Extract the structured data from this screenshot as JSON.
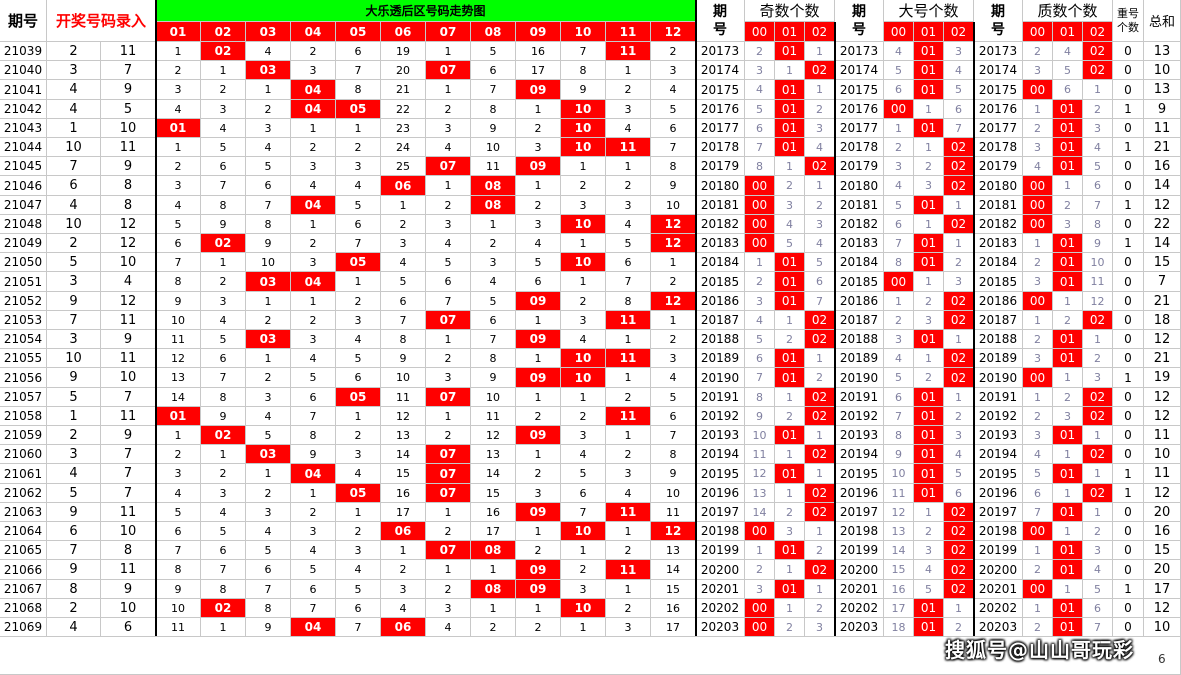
{
  "headers": {
    "period": "期号",
    "entry": "开奖号码录入",
    "trend_title": "大乐透后区号码走势图",
    "trend_cols": [
      "01",
      "02",
      "03",
      "04",
      "05",
      "06",
      "07",
      "08",
      "09",
      "10",
      "11",
      "12"
    ],
    "odd_count": "奇数个数",
    "big_count": "大号个数",
    "prime_count": "质数个数",
    "sub_cols": [
      "00",
      "01",
      "02"
    ],
    "repeat_line1": "重号",
    "repeat_line2": "个数",
    "sum": "总和",
    "period_short_1": "期",
    "period_short_2": "号"
  },
  "rows": [
    {
      "p": "21039",
      "a": 2,
      "b": 11,
      "trend": [
        "1",
        "02",
        "4",
        "2",
        "6",
        "19",
        "1",
        "5",
        "16",
        "7",
        "11",
        "2"
      ],
      "p2": "20173",
      "odd": [
        "2",
        "01",
        "1"
      ],
      "big": [
        "4",
        "01",
        "3"
      ],
      "prime": [
        "2",
        "4",
        "02"
      ],
      "rep": "0",
      "sum": "13"
    },
    {
      "p": "21040",
      "a": 3,
      "b": 7,
      "trend": [
        "2",
        "1",
        "03",
        "3",
        "7",
        "20",
        "07",
        "6",
        "17",
        "8",
        "1",
        "3"
      ],
      "p2": "20174",
      "odd": [
        "3",
        "1",
        "02"
      ],
      "big": [
        "5",
        "01",
        "4"
      ],
      "prime": [
        "3",
        "5",
        "02"
      ],
      "rep": "0",
      "sum": "10"
    },
    {
      "p": "21041",
      "a": 4,
      "b": 9,
      "trend": [
        "3",
        "2",
        "1",
        "04",
        "8",
        "21",
        "1",
        "7",
        "09",
        "9",
        "2",
        "4"
      ],
      "p2": "20175",
      "odd": [
        "4",
        "01",
        "1"
      ],
      "big": [
        "6",
        "01",
        "5"
      ],
      "prime": [
        "00",
        "6",
        "1"
      ],
      "rep": "0",
      "sum": "13"
    },
    {
      "p": "21042",
      "a": 4,
      "b": 5,
      "trend": [
        "4",
        "3",
        "2",
        "04",
        "05",
        "22",
        "2",
        "8",
        "1",
        "10",
        "3",
        "5"
      ],
      "p2": "20176",
      "odd": [
        "5",
        "01",
        "2"
      ],
      "big": [
        "00",
        "1",
        "6"
      ],
      "prime": [
        "1",
        "01",
        "2"
      ],
      "rep": "1",
      "sum": "9"
    },
    {
      "p": "21043",
      "a": 1,
      "b": 10,
      "trend": [
        "01",
        "4",
        "3",
        "1",
        "1",
        "23",
        "3",
        "9",
        "2",
        "10",
        "4",
        "6"
      ],
      "p2": "20177",
      "odd": [
        "6",
        "01",
        "3"
      ],
      "big": [
        "1",
        "01",
        "7"
      ],
      "prime": [
        "2",
        "01",
        "3"
      ],
      "rep": "0",
      "sum": "11"
    },
    {
      "p": "21044",
      "a": 10,
      "b": 11,
      "trend": [
        "1",
        "5",
        "4",
        "2",
        "2",
        "24",
        "4",
        "10",
        "3",
        "10",
        "11",
        "7"
      ],
      "p2": "20178",
      "odd": [
        "7",
        "01",
        "4"
      ],
      "big": [
        "2",
        "1",
        "02"
      ],
      "prime": [
        "3",
        "01",
        "4"
      ],
      "rep": "1",
      "sum": "21"
    },
    {
      "p": "21045",
      "a": 7,
      "b": 9,
      "trend": [
        "2",
        "6",
        "5",
        "3",
        "3",
        "25",
        "07",
        "11",
        "09",
        "1",
        "1",
        "8"
      ],
      "p2": "20179",
      "odd": [
        "8",
        "1",
        "02"
      ],
      "big": [
        "3",
        "2",
        "02"
      ],
      "prime": [
        "4",
        "01",
        "5"
      ],
      "rep": "0",
      "sum": "16"
    },
    {
      "p": "21046",
      "a": 6,
      "b": 8,
      "trend": [
        "3",
        "7",
        "6",
        "4",
        "4",
        "06",
        "1",
        "08",
        "1",
        "2",
        "2",
        "9"
      ],
      "p2": "20180",
      "odd": [
        "00",
        "2",
        "1"
      ],
      "big": [
        "4",
        "3",
        "02"
      ],
      "prime": [
        "00",
        "1",
        "6"
      ],
      "rep": "0",
      "sum": "14"
    },
    {
      "p": "21047",
      "a": 4,
      "b": 8,
      "trend": [
        "4",
        "8",
        "7",
        "04",
        "5",
        "1",
        "2",
        "08",
        "2",
        "3",
        "3",
        "10"
      ],
      "p2": "20181",
      "odd": [
        "00",
        "3",
        "2"
      ],
      "big": [
        "5",
        "01",
        "1"
      ],
      "prime": [
        "00",
        "2",
        "7"
      ],
      "rep": "1",
      "sum": "12"
    },
    {
      "p": "21048",
      "a": 10,
      "b": 12,
      "trend": [
        "5",
        "9",
        "8",
        "1",
        "6",
        "2",
        "3",
        "1",
        "3",
        "10",
        "4",
        "12"
      ],
      "p2": "20182",
      "odd": [
        "00",
        "4",
        "3"
      ],
      "big": [
        "6",
        "1",
        "02"
      ],
      "prime": [
        "00",
        "3",
        "8"
      ],
      "rep": "0",
      "sum": "22"
    },
    {
      "p": "21049",
      "a": 2,
      "b": 12,
      "trend": [
        "6",
        "02",
        "9",
        "2",
        "7",
        "3",
        "4",
        "2",
        "4",
        "1",
        "5",
        "12"
      ],
      "p2": "20183",
      "odd": [
        "00",
        "5",
        "4"
      ],
      "big": [
        "7",
        "01",
        "1"
      ],
      "prime": [
        "1",
        "01",
        "9"
      ],
      "rep": "1",
      "sum": "14"
    },
    {
      "p": "21050",
      "a": 5,
      "b": 10,
      "trend": [
        "7",
        "1",
        "10",
        "3",
        "05",
        "4",
        "5",
        "3",
        "5",
        "10",
        "6",
        "1"
      ],
      "p2": "20184",
      "odd": [
        "1",
        "01",
        "5"
      ],
      "big": [
        "8",
        "01",
        "2"
      ],
      "prime": [
        "2",
        "01",
        "10"
      ],
      "rep": "0",
      "sum": "15"
    },
    {
      "p": "21051",
      "a": 3,
      "b": 4,
      "trend": [
        "8",
        "2",
        "03",
        "04",
        "1",
        "5",
        "6",
        "4",
        "6",
        "1",
        "7",
        "2"
      ],
      "p2": "20185",
      "odd": [
        "2",
        "01",
        "6"
      ],
      "big": [
        "00",
        "1",
        "3"
      ],
      "prime": [
        "3",
        "01",
        "11"
      ],
      "rep": "0",
      "sum": "7"
    },
    {
      "p": "21052",
      "a": 9,
      "b": 12,
      "trend": [
        "9",
        "3",
        "1",
        "1",
        "2",
        "6",
        "7",
        "5",
        "09",
        "2",
        "8",
        "12"
      ],
      "p2": "20186",
      "odd": [
        "3",
        "01",
        "7"
      ],
      "big": [
        "1",
        "2",
        "02"
      ],
      "prime": [
        "00",
        "1",
        "12"
      ],
      "rep": "0",
      "sum": "21"
    },
    {
      "p": "21053",
      "a": 7,
      "b": 11,
      "trend": [
        "10",
        "4",
        "2",
        "2",
        "3",
        "7",
        "07",
        "6",
        "1",
        "3",
        "11",
        "1"
      ],
      "p2": "20187",
      "odd": [
        "4",
        "1",
        "02"
      ],
      "big": [
        "2",
        "3",
        "02"
      ],
      "prime": [
        "1",
        "2",
        "02"
      ],
      "rep": "0",
      "sum": "18"
    },
    {
      "p": "21054",
      "a": 3,
      "b": 9,
      "trend": [
        "11",
        "5",
        "03",
        "3",
        "4",
        "8",
        "1",
        "7",
        "09",
        "4",
        "1",
        "2"
      ],
      "p2": "20188",
      "odd": [
        "5",
        "2",
        "02"
      ],
      "big": [
        "3",
        "01",
        "1"
      ],
      "prime": [
        "2",
        "01",
        "1"
      ],
      "rep": "0",
      "sum": "12"
    },
    {
      "p": "21055",
      "a": 10,
      "b": 11,
      "trend": [
        "12",
        "6",
        "1",
        "4",
        "5",
        "9",
        "2",
        "8",
        "1",
        "10",
        "11",
        "3"
      ],
      "p2": "20189",
      "odd": [
        "6",
        "01",
        "1"
      ],
      "big": [
        "4",
        "1",
        "02"
      ],
      "prime": [
        "3",
        "01",
        "2"
      ],
      "rep": "0",
      "sum": "21"
    },
    {
      "p": "21056",
      "a": 9,
      "b": 10,
      "trend": [
        "13",
        "7",
        "2",
        "5",
        "6",
        "10",
        "3",
        "9",
        "09",
        "10",
        "1",
        "4"
      ],
      "p2": "20190",
      "odd": [
        "7",
        "01",
        "2"
      ],
      "big": [
        "5",
        "2",
        "02"
      ],
      "prime": [
        "00",
        "1",
        "3"
      ],
      "rep": "1",
      "sum": "19"
    },
    {
      "p": "21057",
      "a": 5,
      "b": 7,
      "trend": [
        "14",
        "8",
        "3",
        "6",
        "05",
        "11",
        "07",
        "10",
        "1",
        "1",
        "2",
        "5"
      ],
      "p2": "20191",
      "odd": [
        "8",
        "1",
        "02"
      ],
      "big": [
        "6",
        "01",
        "1"
      ],
      "prime": [
        "1",
        "2",
        "02"
      ],
      "rep": "0",
      "sum": "12"
    },
    {
      "p": "21058",
      "a": 1,
      "b": 11,
      "trend": [
        "01",
        "9",
        "4",
        "7",
        "1",
        "12",
        "1",
        "11",
        "2",
        "2",
        "11",
        "6"
      ],
      "p2": "20192",
      "odd": [
        "9",
        "2",
        "02"
      ],
      "big": [
        "7",
        "01",
        "2"
      ],
      "prime": [
        "2",
        "3",
        "02"
      ],
      "rep": "0",
      "sum": "12"
    },
    {
      "p": "21059",
      "a": 2,
      "b": 9,
      "trend": [
        "1",
        "02",
        "5",
        "8",
        "2",
        "13",
        "2",
        "12",
        "09",
        "3",
        "1",
        "7"
      ],
      "p2": "20193",
      "odd": [
        "10",
        "01",
        "1"
      ],
      "big": [
        "8",
        "01",
        "3"
      ],
      "prime": [
        "3",
        "01",
        "1"
      ],
      "rep": "0",
      "sum": "11"
    },
    {
      "p": "21060",
      "a": 3,
      "b": 7,
      "trend": [
        "2",
        "1",
        "03",
        "9",
        "3",
        "14",
        "07",
        "13",
        "1",
        "4",
        "2",
        "8"
      ],
      "p2": "20194",
      "odd": [
        "11",
        "1",
        "02"
      ],
      "big": [
        "9",
        "01",
        "4"
      ],
      "prime": [
        "4",
        "1",
        "02"
      ],
      "rep": "0",
      "sum": "10"
    },
    {
      "p": "21061",
      "a": 4,
      "b": 7,
      "trend": [
        "3",
        "2",
        "1",
        "04",
        "4",
        "15",
        "07",
        "14",
        "2",
        "5",
        "3",
        "9"
      ],
      "p2": "20195",
      "odd": [
        "12",
        "01",
        "1"
      ],
      "big": [
        "10",
        "01",
        "5"
      ],
      "prime": [
        "5",
        "01",
        "1"
      ],
      "rep": "1",
      "sum": "11"
    },
    {
      "p": "21062",
      "a": 5,
      "b": 7,
      "trend": [
        "4",
        "3",
        "2",
        "1",
        "05",
        "16",
        "07",
        "15",
        "3",
        "6",
        "4",
        "10"
      ],
      "p2": "20196",
      "odd": [
        "13",
        "1",
        "02"
      ],
      "big": [
        "11",
        "01",
        "6"
      ],
      "prime": [
        "6",
        "1",
        "02"
      ],
      "rep": "1",
      "sum": "12"
    },
    {
      "p": "21063",
      "a": 9,
      "b": 11,
      "trend": [
        "5",
        "4",
        "3",
        "2",
        "1",
        "17",
        "1",
        "16",
        "09",
        "7",
        "11",
        "11"
      ],
      "p2": "20197",
      "odd": [
        "14",
        "2",
        "02"
      ],
      "big": [
        "12",
        "1",
        "02"
      ],
      "prime": [
        "7",
        "01",
        "1"
      ],
      "rep": "0",
      "sum": "20"
    },
    {
      "p": "21064",
      "a": 6,
      "b": 10,
      "trend": [
        "6",
        "5",
        "4",
        "3",
        "2",
        "06",
        "2",
        "17",
        "1",
        "10",
        "1",
        "12"
      ],
      "p2": "20198",
      "odd": [
        "00",
        "3",
        "1"
      ],
      "big": [
        "13",
        "2",
        "02"
      ],
      "prime": [
        "00",
        "1",
        "2"
      ],
      "rep": "0",
      "sum": "16"
    },
    {
      "p": "21065",
      "a": 7,
      "b": 8,
      "trend": [
        "7",
        "6",
        "5",
        "4",
        "3",
        "1",
        "07",
        "08",
        "2",
        "1",
        "2",
        "13"
      ],
      "p2": "20199",
      "odd": [
        "1",
        "01",
        "2"
      ],
      "big": [
        "14",
        "3",
        "02"
      ],
      "prime": [
        "1",
        "01",
        "3"
      ],
      "rep": "0",
      "sum": "15"
    },
    {
      "p": "21066",
      "a": 9,
      "b": 11,
      "trend": [
        "8",
        "7",
        "6",
        "5",
        "4",
        "2",
        "1",
        "1",
        "09",
        "2",
        "11",
        "14"
      ],
      "p2": "20200",
      "odd": [
        "2",
        "1",
        "02"
      ],
      "big": [
        "15",
        "4",
        "02"
      ],
      "prime": [
        "2",
        "01",
        "4"
      ],
      "rep": "0",
      "sum": "20"
    },
    {
      "p": "21067",
      "a": 8,
      "b": 9,
      "trend": [
        "9",
        "8",
        "7",
        "6",
        "5",
        "3",
        "2",
        "08",
        "09",
        "3",
        "1",
        "15"
      ],
      "p2": "20201",
      "odd": [
        "3",
        "01",
        "1"
      ],
      "big": [
        "16",
        "5",
        "02"
      ],
      "prime": [
        "00",
        "1",
        "5"
      ],
      "rep": "1",
      "sum": "17"
    },
    {
      "p": "21068",
      "a": 2,
      "b": 10,
      "trend": [
        "10",
        "02",
        "8",
        "7",
        "6",
        "4",
        "3",
        "1",
        "1",
        "10",
        "2",
        "16"
      ],
      "p2": "20202",
      "odd": [
        "00",
        "1",
        "2"
      ],
      "big": [
        "17",
        "01",
        "1"
      ],
      "prime": [
        "1",
        "01",
        "6"
      ],
      "rep": "0",
      "sum": "12"
    },
    {
      "p": "21069",
      "a": 4,
      "b": 6,
      "trend": [
        "11",
        "1",
        "9",
        "04",
        "7",
        "06",
        "4",
        "2",
        "2",
        "1",
        "3",
        "17"
      ],
      "p2": "20203",
      "odd": [
        "00",
        "2",
        "3"
      ],
      "big": [
        "18",
        "01",
        "2"
      ],
      "prime": [
        "2",
        "01",
        "7"
      ],
      "rep": "0",
      "sum": "10"
    }
  ],
  "watermark": "搜狐号@山山哥玩彩",
  "page_number": "6",
  "colors": {
    "hit": "#ff0000",
    "green": "#00ff00",
    "missing": "#8080a0"
  }
}
